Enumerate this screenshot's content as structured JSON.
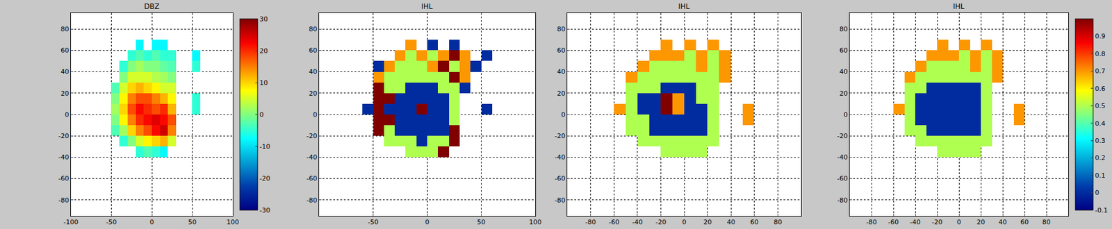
{
  "chart_data": [
    {
      "type": "heatmap",
      "title": "DBZ",
      "color": "Jet",
      "grid": true,
      "xlim": [
        -100,
        100
      ],
      "xticks": [
        -100,
        -50,
        0,
        50,
        100
      ],
      "ylim": [
        -95,
        95
      ],
      "yticks": [
        -80,
        -60,
        -40,
        -20,
        0,
        20,
        40,
        60,
        80
      ],
      "zlim": [
        -30,
        30
      ],
      "zticks": [
        -30,
        -20,
        -10,
        0,
        10,
        20,
        30
      ],
      "x": [
        -55,
        -45,
        -35,
        -25,
        -15,
        -5,
        5,
        15,
        25,
        35,
        45,
        55,
        65
      ],
      "y": [
        -35,
        -25,
        -15,
        -5,
        5,
        15,
        25,
        35,
        45,
        55,
        65
      ],
      "z": [
        [
          null,
          null,
          null,
          null,
          -5,
          -3,
          -5,
          -8,
          null,
          null,
          null,
          null,
          null
        ],
        [
          null,
          null,
          -5,
          0,
          5,
          8,
          10,
          12,
          5,
          null,
          null,
          null,
          null
        ],
        [
          null,
          -3,
          2,
          10,
          15,
          18,
          22,
          25,
          15,
          null,
          null,
          null,
          null
        ],
        [
          null,
          0,
          8,
          15,
          20,
          22,
          24,
          22,
          18,
          null,
          null,
          null,
          null
        ],
        [
          null,
          2,
          10,
          18,
          22,
          20,
          18,
          20,
          12,
          null,
          null,
          -5,
          null
        ],
        [
          null,
          0,
          8,
          15,
          18,
          18,
          15,
          12,
          8,
          null,
          null,
          -5,
          null
        ],
        [
          null,
          -3,
          5,
          10,
          12,
          10,
          8,
          5,
          5,
          null,
          null,
          null,
          null
        ],
        [
          null,
          null,
          0,
          5,
          5,
          5,
          3,
          2,
          0,
          null,
          null,
          null,
          null
        ],
        [
          null,
          null,
          -5,
          0,
          2,
          0,
          0,
          -2,
          -3,
          null,
          null,
          -5,
          null
        ],
        [
          null,
          null,
          null,
          -5,
          -3,
          -5,
          -3,
          -5,
          -5,
          null,
          null,
          -8,
          null
        ],
        [
          null,
          null,
          null,
          null,
          -8,
          null,
          -8,
          -8,
          null,
          null,
          null,
          null,
          null
        ]
      ]
    },
    {
      "type": "heatmap",
      "title": "IHL",
      "color": "Jet",
      "grid": true,
      "xlim": [
        -100,
        100
      ],
      "xticks": [
        -50,
        0,
        50,
        100
      ],
      "ylim": [
        -95,
        95
      ],
      "yticks": [
        -80,
        -60,
        -40,
        -20,
        0,
        20,
        40,
        60,
        80
      ],
      "zlim": [
        -0.1,
        1
      ],
      "x": [
        -55,
        -45,
        -35,
        -25,
        -15,
        -5,
        5,
        15,
        25,
        35,
        45,
        55,
        65
      ],
      "y": [
        -35,
        -25,
        -15,
        -5,
        5,
        15,
        25,
        35,
        45,
        55,
        65
      ],
      "z": [
        [
          null,
          null,
          null,
          null,
          0.5,
          0.5,
          0.5,
          1,
          null,
          null,
          null,
          null,
          null
        ],
        [
          null,
          null,
          0.5,
          0.5,
          0.5,
          0,
          0.5,
          0.5,
          1,
          null,
          null,
          null,
          null
        ],
        [
          null,
          1,
          0.5,
          0,
          0,
          0,
          0,
          0,
          1,
          null,
          null,
          null,
          null
        ],
        [
          null,
          1,
          1,
          0,
          0,
          0,
          0,
          0,
          0.5,
          null,
          null,
          null,
          null
        ],
        [
          0,
          1,
          0,
          0,
          0,
          1,
          0,
          0,
          0.5,
          null,
          null,
          0,
          null
        ],
        [
          null,
          1,
          1,
          0,
          0,
          0,
          0,
          0,
          0.5,
          null,
          null,
          null,
          null
        ],
        [
          null,
          1,
          0.5,
          0.5,
          0,
          0,
          0,
          0.5,
          0.5,
          0,
          null,
          null,
          null
        ],
        [
          null,
          0.7,
          0.5,
          0.5,
          0.5,
          0.5,
          0.5,
          0.5,
          1,
          0.7,
          null,
          null,
          null
        ],
        [
          null,
          0,
          0.7,
          0.5,
          0.5,
          0.5,
          0.7,
          1,
          0.5,
          0.7,
          0,
          null,
          null
        ],
        [
          null,
          null,
          null,
          0.7,
          0.5,
          0.7,
          0.5,
          0.7,
          1,
          0.7,
          null,
          0,
          null
        ],
        [
          null,
          null,
          null,
          null,
          0.7,
          null,
          0,
          null,
          0,
          null,
          null,
          null,
          null
        ]
      ]
    },
    {
      "type": "heatmap",
      "title": "IHL",
      "color": "Jet",
      "grid": true,
      "xlim": [
        -100,
        100
      ],
      "xticks": [
        -80,
        -60,
        -40,
        -20,
        0,
        20,
        40,
        60,
        80
      ],
      "ylim": [
        -95,
        95
      ],
      "yticks": [
        -80,
        -60,
        -40,
        -20,
        0,
        20,
        40,
        60,
        80
      ],
      "zlim": [
        -0.1,
        1
      ],
      "x": [
        -55,
        -45,
        -35,
        -25,
        -15,
        -5,
        5,
        15,
        25,
        35,
        45,
        55,
        65
      ],
      "y": [
        -35,
        -25,
        -15,
        -5,
        5,
        15,
        25,
        35,
        45,
        55,
        65
      ],
      "z": [
        [
          null,
          null,
          null,
          null,
          0.5,
          0.5,
          0.5,
          0.5,
          null,
          null,
          null,
          null,
          null
        ],
        [
          null,
          null,
          0.5,
          0.5,
          0.5,
          0.5,
          0.5,
          0.5,
          0.5,
          null,
          null,
          null,
          null
        ],
        [
          null,
          0.5,
          0.5,
          0,
          0,
          0,
          0,
          0,
          0.5,
          null,
          null,
          null,
          null
        ],
        [
          null,
          0.5,
          0.5,
          0,
          0,
          0,
          0,
          0,
          0.5,
          null,
          null,
          0.7,
          null
        ],
        [
          0.7,
          0.5,
          0,
          0,
          1,
          0.7,
          0,
          0,
          0.5,
          null,
          null,
          0.7,
          null
        ],
        [
          null,
          0.5,
          0,
          0,
          1,
          0.7,
          0,
          0.5,
          0.5,
          null,
          null,
          null,
          null
        ],
        [
          null,
          0.5,
          0.5,
          0.5,
          0,
          0,
          0,
          0.5,
          0.5,
          null,
          null,
          null,
          null
        ],
        [
          null,
          0.7,
          0.5,
          0.5,
          0.5,
          0.5,
          0.5,
          0.5,
          0.5,
          0.7,
          null,
          null,
          null
        ],
        [
          null,
          null,
          0.7,
          0.5,
          0.5,
          0.5,
          0.5,
          0.7,
          0.5,
          0.7,
          null,
          null,
          null
        ],
        [
          null,
          null,
          null,
          0.7,
          0.7,
          0.7,
          0.5,
          0.7,
          0.5,
          0.7,
          null,
          null,
          null
        ],
        [
          null,
          null,
          null,
          null,
          0.7,
          null,
          0.7,
          null,
          0.7,
          null,
          null,
          null,
          null
        ]
      ]
    },
    {
      "type": "heatmap",
      "title": "IHL",
      "color": "Jet",
      "grid": true,
      "xlim": [
        -100,
        100
      ],
      "xticks": [
        -80,
        -60,
        -40,
        -20,
        0,
        20,
        40,
        60,
        80
      ],
      "ylim": [
        -95,
        95
      ],
      "yticks": [
        -80,
        -60,
        -40,
        -20,
        0,
        20,
        40,
        60,
        80
      ],
      "zlim": [
        -0.1,
        1
      ],
      "zticks": [
        -0.1,
        0,
        0.1,
        0.2,
        0.3,
        0.4,
        0.5,
        0.6,
        0.7,
        0.8,
        0.9
      ],
      "x": [
        -55,
        -45,
        -35,
        -25,
        -15,
        -5,
        5,
        15,
        25,
        35,
        45,
        55,
        65
      ],
      "y": [
        -35,
        -25,
        -15,
        -5,
        5,
        15,
        25,
        35,
        45,
        55,
        65
      ],
      "z": [
        [
          null,
          null,
          null,
          null,
          0.5,
          0.5,
          0.5,
          0.5,
          null,
          null,
          null,
          null,
          null
        ],
        [
          null,
          null,
          0.5,
          0.5,
          0.5,
          0.5,
          0.5,
          0.5,
          0.5,
          null,
          null,
          null,
          null
        ],
        [
          null,
          0.5,
          0.5,
          0,
          0,
          0,
          0,
          0,
          0.5,
          null,
          null,
          null,
          null
        ],
        [
          null,
          0.5,
          0,
          0,
          0,
          0,
          0,
          0,
          0.5,
          null,
          null,
          0.7,
          null
        ],
        [
          0.7,
          0.5,
          0,
          0,
          0,
          0,
          0,
          0,
          0.5,
          null,
          null,
          0.7,
          null
        ],
        [
          null,
          0.5,
          0,
          0,
          0,
          0,
          0,
          0,
          0.5,
          null,
          null,
          null,
          null
        ],
        [
          null,
          0.5,
          0.5,
          0,
          0,
          0,
          0,
          0,
          0.5,
          null,
          null,
          null,
          null
        ],
        [
          null,
          0.7,
          0.5,
          0.5,
          0.5,
          0.5,
          0.5,
          0.5,
          0.5,
          0.7,
          null,
          null,
          null
        ],
        [
          null,
          null,
          0.7,
          0.5,
          0.5,
          0.5,
          0.5,
          0.7,
          0.5,
          0.7,
          null,
          null,
          null
        ],
        [
          null,
          null,
          null,
          0.7,
          0.7,
          0.7,
          0.5,
          0.7,
          0.5,
          0.7,
          null,
          null,
          null
        ],
        [
          null,
          null,
          null,
          null,
          0.7,
          null,
          0.7,
          null,
          0.7,
          null,
          null,
          null,
          null
        ]
      ]
    }
  ]
}
